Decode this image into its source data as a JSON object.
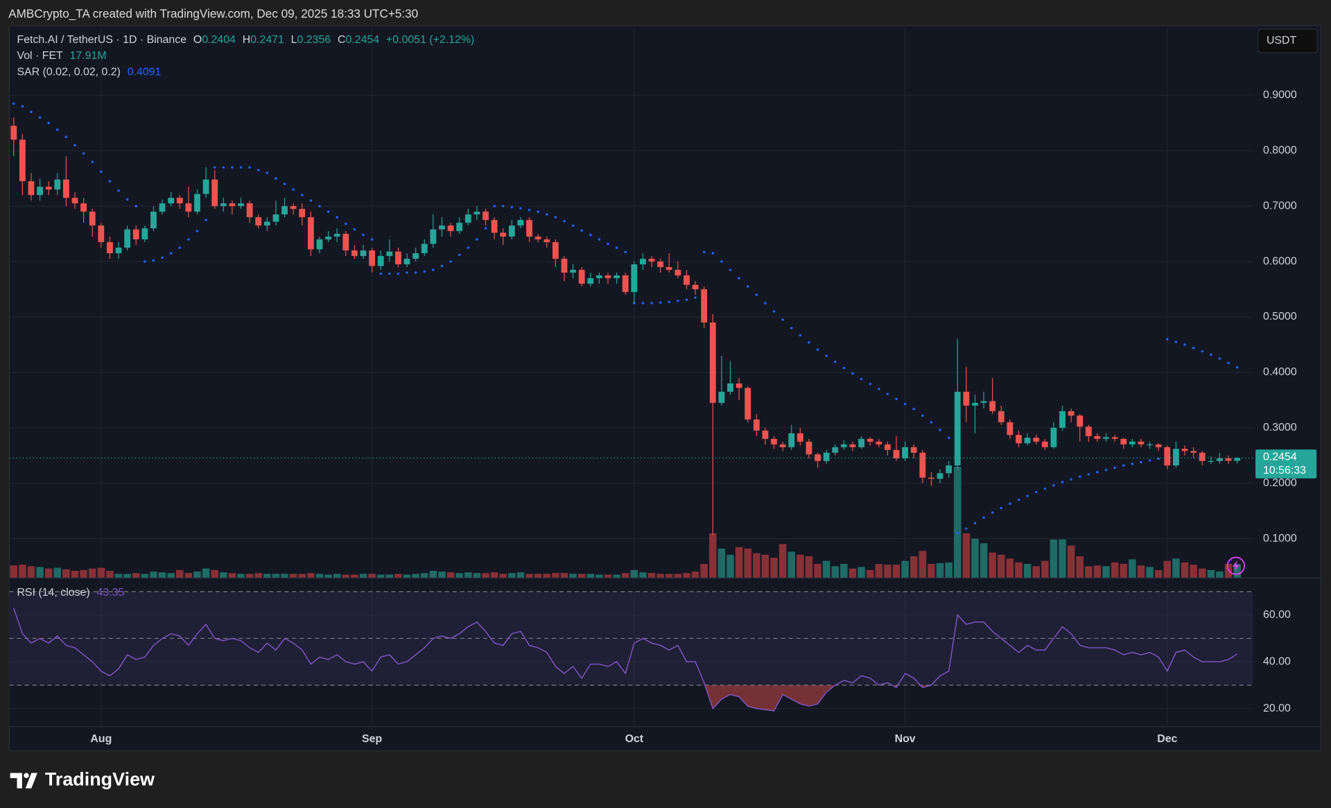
{
  "header": {
    "credit": "AMBCrypto_TA created with TradingView.com, Dec 09, 2025 18:33 UTC+5:30"
  },
  "footer": {
    "logo": "TradingView"
  },
  "chart_data": {
    "type": "candlestick",
    "symbol": "Fetch.AI / TetherUS · 1D · Binance",
    "ohlc_labels": [
      "O",
      "H",
      "L",
      "C"
    ],
    "change_label": "+0.0051 (+2.12%)",
    "currency": "USDT",
    "countdown": "10:56:33",
    "up_color": "#26a69a",
    "down_color": "#ef5350",
    "xlim": [
      -0.5,
      141.8
    ],
    "xticks": [
      {
        "value": 10,
        "label": "Aug"
      },
      {
        "value": 41,
        "label": "Sep"
      },
      {
        "value": 71,
        "label": "Oct"
      },
      {
        "value": 102,
        "label": "Nov"
      },
      {
        "value": 132,
        "label": "Dec"
      }
    ],
    "ylim": [
      0.0295,
      1.0257
    ],
    "yticks": [
      {
        "value": 0.1,
        "label": "0.1000"
      },
      {
        "value": 0.2,
        "label": "0.2000"
      },
      {
        "value": 0.3,
        "label": "0.3000"
      },
      {
        "value": 0.4,
        "label": "0.4000"
      },
      {
        "value": 0.5,
        "label": "0.5000"
      },
      {
        "value": 0.6,
        "label": "0.6000"
      },
      {
        "value": 0.7,
        "label": "0.7000"
      },
      {
        "value": 0.8,
        "label": "0.8000"
      },
      {
        "value": 0.9,
        "label": "0.9000"
      }
    ],
    "grid": true,
    "ohlc": [
      [
        0.845,
        0.86,
        0.79,
        0.82
      ],
      [
        0.82,
        0.83,
        0.72,
        0.745
      ],
      [
        0.745,
        0.76,
        0.71,
        0.72
      ],
      [
        0.72,
        0.75,
        0.71,
        0.735
      ],
      [
        0.735,
        0.745,
        0.72,
        0.73
      ],
      [
        0.73,
        0.76,
        0.72,
        0.748
      ],
      [
        0.748,
        0.79,
        0.7,
        0.715
      ],
      [
        0.715,
        0.725,
        0.695,
        0.705
      ],
      [
        0.705,
        0.715,
        0.67,
        0.69
      ],
      [
        0.69,
        0.695,
        0.645,
        0.665
      ],
      [
        0.665,
        0.67,
        0.625,
        0.635
      ],
      [
        0.635,
        0.645,
        0.605,
        0.615
      ],
      [
        0.615,
        0.635,
        0.605,
        0.625
      ],
      [
        0.625,
        0.665,
        0.62,
        0.658
      ],
      [
        0.658,
        0.665,
        0.63,
        0.64
      ],
      [
        0.64,
        0.665,
        0.635,
        0.66
      ],
      [
        0.66,
        0.7,
        0.655,
        0.69
      ],
      [
        0.69,
        0.712,
        0.685,
        0.705
      ],
      [
        0.705,
        0.725,
        0.7,
        0.715
      ],
      [
        0.715,
        0.72,
        0.695,
        0.705
      ],
      [
        0.705,
        0.735,
        0.68,
        0.69
      ],
      [
        0.69,
        0.73,
        0.685,
        0.722
      ],
      [
        0.722,
        0.77,
        0.715,
        0.748
      ],
      [
        0.748,
        0.765,
        0.695,
        0.7
      ],
      [
        0.7,
        0.715,
        0.69,
        0.705
      ],
      [
        0.705,
        0.71,
        0.685,
        0.7
      ],
      [
        0.7,
        0.715,
        0.695,
        0.705
      ],
      [
        0.705,
        0.71,
        0.67,
        0.68
      ],
      [
        0.68,
        0.685,
        0.66,
        0.665
      ],
      [
        0.665,
        0.68,
        0.655,
        0.672
      ],
      [
        0.672,
        0.71,
        0.665,
        0.685
      ],
      [
        0.685,
        0.715,
        0.68,
        0.7
      ],
      [
        0.7,
        0.705,
        0.685,
        0.695
      ],
      [
        0.695,
        0.705,
        0.665,
        0.68
      ],
      [
        0.68,
        0.69,
        0.61,
        0.622
      ],
      [
        0.622,
        0.645,
        0.615,
        0.64
      ],
      [
        0.64,
        0.655,
        0.635,
        0.645
      ],
      [
        0.645,
        0.66,
        0.635,
        0.65
      ],
      [
        0.65,
        0.655,
        0.61,
        0.62
      ],
      [
        0.62,
        0.63,
        0.605,
        0.61
      ],
      [
        0.61,
        0.63,
        0.605,
        0.62
      ],
      [
        0.62,
        0.625,
        0.58,
        0.592
      ],
      [
        0.592,
        0.62,
        0.585,
        0.61
      ],
      [
        0.61,
        0.64,
        0.6,
        0.618
      ],
      [
        0.618,
        0.625,
        0.59,
        0.595
      ],
      [
        0.595,
        0.615,
        0.59,
        0.605
      ],
      [
        0.605,
        0.625,
        0.6,
        0.615
      ],
      [
        0.615,
        0.64,
        0.61,
        0.632
      ],
      [
        0.632,
        0.685,
        0.625,
        0.658
      ],
      [
        0.658,
        0.68,
        0.645,
        0.665
      ],
      [
        0.665,
        0.67,
        0.645,
        0.655
      ],
      [
        0.655,
        0.68,
        0.65,
        0.67
      ],
      [
        0.67,
        0.695,
        0.665,
        0.685
      ],
      [
        0.685,
        0.7,
        0.675,
        0.69
      ],
      [
        0.69,
        0.695,
        0.665,
        0.675
      ],
      [
        0.675,
        0.68,
        0.64,
        0.652
      ],
      [
        0.652,
        0.66,
        0.63,
        0.645
      ],
      [
        0.645,
        0.675,
        0.64,
        0.665
      ],
      [
        0.665,
        0.68,
        0.66,
        0.675
      ],
      [
        0.675,
        0.68,
        0.635,
        0.645
      ],
      [
        0.645,
        0.65,
        0.635,
        0.64
      ],
      [
        0.64,
        0.645,
        0.625,
        0.635
      ],
      [
        0.635,
        0.64,
        0.59,
        0.605
      ],
      [
        0.605,
        0.61,
        0.565,
        0.58
      ],
      [
        0.58,
        0.595,
        0.57,
        0.585
      ],
      [
        0.585,
        0.59,
        0.555,
        0.56
      ],
      [
        0.56,
        0.58,
        0.555,
        0.57
      ],
      [
        0.57,
        0.58,
        0.56,
        0.575
      ],
      [
        0.575,
        0.58,
        0.56,
        0.57
      ],
      [
        0.57,
        0.58,
        0.56,
        0.575
      ],
      [
        0.575,
        0.58,
        0.54,
        0.545
      ],
      [
        0.545,
        0.6,
        0.525,
        0.595
      ],
      [
        0.595,
        0.615,
        0.585,
        0.605
      ],
      [
        0.605,
        0.61,
        0.59,
        0.6
      ],
      [
        0.6,
        0.605,
        0.58,
        0.59
      ],
      [
        0.59,
        0.615,
        0.58,
        0.585
      ],
      [
        0.585,
        0.6,
        0.57,
        0.575
      ],
      [
        0.575,
        0.585,
        0.55,
        0.558
      ],
      [
        0.558,
        0.565,
        0.54,
        0.55
      ],
      [
        0.55,
        0.555,
        0.48,
        0.49
      ],
      [
        0.49,
        0.505,
        0.106,
        0.345
      ],
      [
        0.345,
        0.43,
        0.34,
        0.365
      ],
      [
        0.365,
        0.42,
        0.36,
        0.38
      ],
      [
        0.38,
        0.39,
        0.35,
        0.372
      ],
      [
        0.372,
        0.375,
        0.31,
        0.315
      ],
      [
        0.315,
        0.325,
        0.285,
        0.295
      ],
      [
        0.295,
        0.3,
        0.27,
        0.28
      ],
      [
        0.28,
        0.285,
        0.262,
        0.27
      ],
      [
        0.27,
        0.275,
        0.258,
        0.265
      ],
      [
        0.265,
        0.305,
        0.26,
        0.29
      ],
      [
        0.29,
        0.3,
        0.268,
        0.275
      ],
      [
        0.275,
        0.28,
        0.245,
        0.252
      ],
      [
        0.252,
        0.255,
        0.228,
        0.24
      ],
      [
        0.24,
        0.26,
        0.235,
        0.255
      ],
      [
        0.255,
        0.27,
        0.25,
        0.265
      ],
      [
        0.265,
        0.278,
        0.26,
        0.27
      ],
      [
        0.27,
        0.275,
        0.258,
        0.265
      ],
      [
        0.265,
        0.285,
        0.262,
        0.28
      ],
      [
        0.28,
        0.283,
        0.268,
        0.275
      ],
      [
        0.275,
        0.28,
        0.265,
        0.27
      ],
      [
        0.27,
        0.275,
        0.25,
        0.26
      ],
      [
        0.26,
        0.285,
        0.24,
        0.245
      ],
      [
        0.245,
        0.275,
        0.24,
        0.265
      ],
      [
        0.265,
        0.27,
        0.245,
        0.255
      ],
      [
        0.255,
        0.26,
        0.2,
        0.21
      ],
      [
        0.21,
        0.22,
        0.195,
        0.208
      ],
      [
        0.208,
        0.225,
        0.2,
        0.218
      ],
      [
        0.218,
        0.24,
        0.21,
        0.232
      ],
      [
        0.232,
        0.46,
        0.225,
        0.365
      ],
      [
        0.365,
        0.41,
        0.31,
        0.34
      ],
      [
        0.34,
        0.36,
        0.29,
        0.345
      ],
      [
        0.345,
        0.365,
        0.335,
        0.348
      ],
      [
        0.348,
        0.39,
        0.325,
        0.33
      ],
      [
        0.33,
        0.34,
        0.305,
        0.31
      ],
      [
        0.31,
        0.315,
        0.28,
        0.287
      ],
      [
        0.287,
        0.295,
        0.265,
        0.272
      ],
      [
        0.272,
        0.29,
        0.268,
        0.282
      ],
      [
        0.282,
        0.288,
        0.27,
        0.275
      ],
      [
        0.275,
        0.28,
        0.26,
        0.265
      ],
      [
        0.265,
        0.31,
        0.262,
        0.3
      ],
      [
        0.3,
        0.34,
        0.295,
        0.33
      ],
      [
        0.33,
        0.335,
        0.31,
        0.322
      ],
      [
        0.322,
        0.325,
        0.275,
        0.302
      ],
      [
        0.302,
        0.305,
        0.275,
        0.285
      ],
      [
        0.285,
        0.29,
        0.275,
        0.28
      ],
      [
        0.28,
        0.29,
        0.275,
        0.283
      ],
      [
        0.283,
        0.287,
        0.275,
        0.28
      ],
      [
        0.28,
        0.282,
        0.262,
        0.27
      ],
      [
        0.27,
        0.28,
        0.265,
        0.275
      ],
      [
        0.275,
        0.28,
        0.265,
        0.27
      ],
      [
        0.27,
        0.275,
        0.262,
        0.27
      ],
      [
        0.27,
        0.272,
        0.258,
        0.265
      ],
      [
        0.265,
        0.268,
        0.225,
        0.232
      ],
      [
        0.232,
        0.275,
        0.228,
        0.262
      ],
      [
        0.262,
        0.268,
        0.25,
        0.258
      ],
      [
        0.258,
        0.265,
        0.245,
        0.255
      ],
      [
        0.255,
        0.258,
        0.232,
        0.24
      ],
      [
        0.24,
        0.248,
        0.235,
        0.24
      ],
      [
        0.24,
        0.255,
        0.235,
        0.245
      ],
      [
        0.245,
        0.25,
        0.235,
        0.2404
      ],
      [
        0.2404,
        0.2471,
        0.2356,
        0.2454
      ]
    ],
    "volume": {
      "name": "Vol · FET",
      "last_label": "17.91M",
      "up_color": "#1f6b66",
      "down_color": "#873137",
      "values": [
        16,
        17,
        15,
        14,
        12,
        13,
        11,
        9,
        10,
        12,
        13,
        9,
        5,
        5,
        6,
        5,
        8,
        7,
        6,
        10,
        6,
        8,
        12,
        10,
        7,
        6,
        5,
        5,
        6,
        5,
        5,
        5,
        5,
        5,
        6,
        5,
        4,
        5,
        4,
        4,
        5,
        5,
        4,
        4,
        5,
        4,
        5,
        6,
        9,
        8,
        7,
        6,
        7,
        6,
        6,
        7,
        5,
        6,
        7,
        5,
        5,
        5,
        6,
        6,
        5,
        5,
        5,
        4,
        4,
        4,
        6,
        10,
        7,
        6,
        5,
        5,
        5,
        6,
        8,
        18,
        58,
        38,
        30,
        40,
        38,
        32,
        30,
        26,
        44,
        34,
        30,
        28,
        18,
        22,
        15,
        18,
        12,
        14,
        10,
        18,
        17,
        17,
        22,
        28,
        35,
        18,
        19,
        20,
        145,
        58,
        51,
        45,
        33,
        30,
        25,
        20,
        18,
        15,
        22,
        50,
        50,
        42,
        28,
        15,
        16,
        15,
        20,
        18,
        24,
        16,
        14,
        10,
        22,
        25,
        20,
        17,
        12,
        10,
        8,
        18,
        17.91
      ]
    },
    "sar": {
      "name": "SAR (0.02, 0.02, 0.2)",
      "color": "#2962ff",
      "values": [
        0.885,
        0.88,
        0.87,
        0.86,
        0.85,
        0.838,
        0.825,
        0.81,
        0.795,
        0.78,
        0.762,
        0.745,
        0.728,
        0.712,
        0.7,
        0.6,
        0.602,
        0.607,
        0.615,
        0.625,
        0.64,
        0.655,
        0.675,
        0.77,
        0.77,
        0.77,
        0.77,
        0.77,
        0.765,
        0.76,
        0.75,
        0.74,
        0.73,
        0.72,
        0.71,
        0.7,
        0.69,
        0.68,
        0.668,
        0.658,
        0.648,
        0.64,
        0.578,
        0.578,
        0.578,
        0.58,
        0.58,
        0.582,
        0.585,
        0.592,
        0.6,
        0.612,
        0.625,
        0.64,
        0.66,
        0.7,
        0.7,
        0.698,
        0.696,
        0.693,
        0.69,
        0.685,
        0.68,
        0.673,
        0.665,
        0.656,
        0.648,
        0.64,
        0.632,
        0.625,
        0.617,
        0.525,
        0.525,
        0.525,
        0.526,
        0.527,
        0.529,
        0.531,
        0.535,
        0.617,
        0.615,
        0.6,
        0.585,
        0.57,
        0.555,
        0.54,
        0.525,
        0.51,
        0.495,
        0.48,
        0.467,
        0.454,
        0.441,
        0.43,
        0.419,
        0.408,
        0.398,
        0.388,
        0.379,
        0.37,
        0.361,
        0.352,
        0.343,
        0.334,
        0.322,
        0.31,
        0.296,
        0.282,
        0.11,
        0.118,
        0.128,
        0.138,
        0.147,
        0.155,
        0.163,
        0.17,
        0.177,
        0.184,
        0.19,
        0.196,
        0.202,
        0.207,
        0.212,
        0.216,
        0.22,
        0.224,
        0.228,
        0.232,
        0.235,
        0.238,
        0.241,
        0.244,
        0.46,
        0.455,
        0.45,
        0.444,
        0.438,
        0.432,
        0.425,
        0.417,
        0.4091
      ]
    },
    "rsi": {
      "name": "RSI (14, close)",
      "color": "#7e57c2",
      "ylim": [
        12.4,
        75.6
      ],
      "yticks": [
        {
          "value": 20,
          "label": "20.00"
        },
        {
          "value": 40,
          "label": "40.00"
        },
        {
          "value": 60,
          "label": "60.00"
        }
      ],
      "bands": [
        30,
        50,
        70
      ],
      "values": [
        63,
        52,
        48,
        50,
        48,
        51,
        47,
        46,
        43,
        40,
        36,
        34,
        37,
        43,
        41,
        42,
        47,
        50,
        52,
        51,
        47,
        52,
        56,
        50,
        49,
        50,
        49,
        46,
        44,
        48,
        45,
        50,
        48,
        45,
        39,
        42,
        41,
        43,
        40,
        39,
        40,
        36,
        42,
        43,
        39,
        40,
        43,
        46,
        50,
        51,
        50,
        52,
        55,
        57,
        53,
        48,
        47,
        52,
        53,
        47,
        46,
        44,
        38,
        35,
        38,
        33,
        39,
        39,
        38,
        40,
        35,
        48,
        50,
        48,
        47,
        45,
        47,
        40,
        40,
        31,
        20,
        24,
        26,
        25,
        21,
        20,
        19.5,
        19,
        26,
        24,
        22,
        21,
        22,
        27,
        30,
        32,
        31,
        34,
        33,
        30,
        31,
        29,
        35,
        33,
        29,
        30,
        34,
        36,
        60,
        56,
        57,
        57,
        53,
        50,
        47,
        44,
        47,
        45,
        45,
        50,
        55,
        52,
        47,
        46,
        46,
        46,
        45,
        43,
        44,
        43,
        44,
        42,
        36,
        44,
        45,
        42,
        40,
        40,
        40,
        41,
        43.35
      ]
    }
  }
}
